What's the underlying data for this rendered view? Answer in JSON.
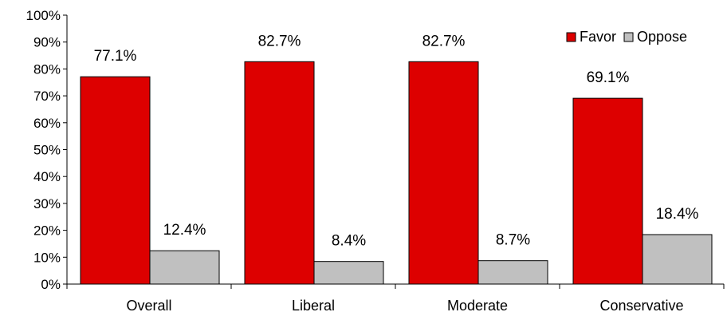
{
  "chart_data": {
    "type": "bar",
    "categories": [
      "Overall",
      "Liberal",
      "Moderate",
      "Conservative"
    ],
    "series": [
      {
        "name": "Favor",
        "values": [
          77.1,
          82.7,
          82.7,
          69.1
        ],
        "color": "#dd0000",
        "labels": [
          "77.1%",
          "82.7%",
          "82.7%",
          "69.1%"
        ]
      },
      {
        "name": "Oppose",
        "values": [
          12.4,
          8.4,
          8.7,
          18.4
        ],
        "color": "#c0c0c0",
        "labels": [
          "12.4%",
          "8.4%",
          "8.7%",
          "18.4%"
        ]
      }
    ],
    "ylim": [
      0,
      100
    ],
    "yticks": [
      0,
      10,
      20,
      30,
      40,
      50,
      60,
      70,
      80,
      90,
      100
    ],
    "ytick_labels": [
      "0%",
      "10%",
      "20%",
      "30%",
      "40%",
      "50%",
      "60%",
      "70%",
      "80%",
      "90%",
      "100%"
    ],
    "grid": false,
    "legend_position": "top-right"
  }
}
